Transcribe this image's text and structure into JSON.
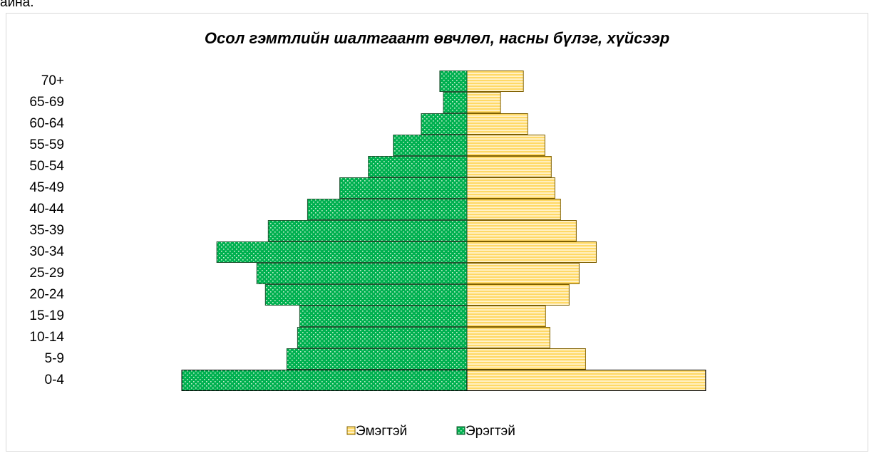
{
  "top_fragment": "айна.",
  "chart_data": {
    "type": "pyramid",
    "title": "Осол гэмтлийн шалтгаант өвчлөл, насны бүлэг, хүйсээр",
    "categories": [
      "0-4",
      "5-9",
      "10-14",
      "15-19",
      "20-24",
      "25-29",
      "30-34",
      "35-39",
      "40-44",
      "45-49",
      "50-54",
      "55-59",
      "60-64",
      "65-69",
      "70+"
    ],
    "series": [
      {
        "name": "Эмэгтэй",
        "color": "#ffd966",
        "side": "right",
        "values": [
          334,
          166,
          116,
          110,
          143,
          157,
          181,
          153,
          131,
          123,
          118,
          109,
          85,
          47,
          79
        ]
      },
      {
        "name": "Эрэгтэй",
        "color": "#00b050",
        "side": "left",
        "values": [
          399,
          252,
          237,
          234,
          282,
          294,
          350,
          278,
          223,
          178,
          138,
          103,
          64,
          33,
          38
        ]
      }
    ],
    "legend": "bottom"
  }
}
